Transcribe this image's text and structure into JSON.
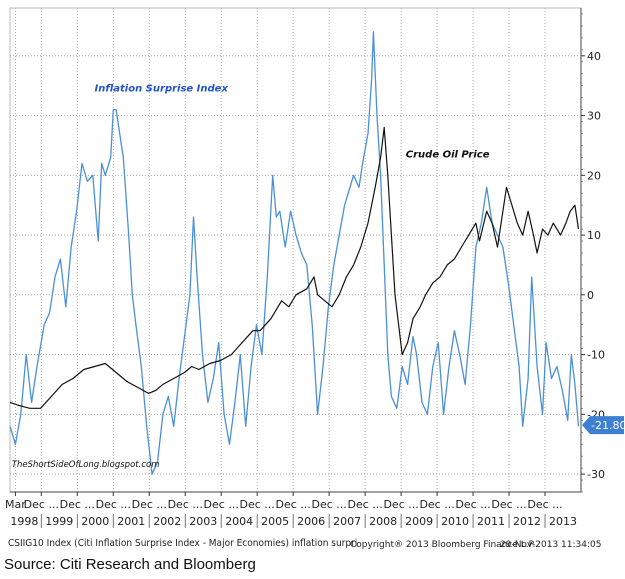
{
  "chart_data": {
    "type": "line",
    "title": "",
    "xlabel": "",
    "ylabel": "",
    "ylim": [
      -33,
      48
    ],
    "yticks": [
      -30,
      -20,
      -10,
      0,
      10,
      20,
      30,
      40
    ],
    "y_tick_labels": [
      "-30",
      "-20",
      "-10",
      "0",
      "10",
      "20",
      "30",
      "40"
    ],
    "last_value_label": "-21.80",
    "last_value": -21.8,
    "x_range": [
      1998.05,
      2013.92
    ],
    "x_ticks": [
      {
        "x": 1998.2,
        "month": "Mar",
        "year": "1998"
      },
      {
        "x": 1998.92,
        "month": "Dec ...",
        "year": "1999"
      },
      {
        "x": 1999.92,
        "month": "Dec ...",
        "year": "2000"
      },
      {
        "x": 2000.92,
        "month": "Dec ...",
        "year": "2001"
      },
      {
        "x": 2001.92,
        "month": "Dec ...",
        "year": "2002"
      },
      {
        "x": 2002.92,
        "month": "Dec ...",
        "year": "2003"
      },
      {
        "x": 2003.92,
        "month": "Dec ...",
        "year": "2004"
      },
      {
        "x": 2004.92,
        "month": "Dec ...",
        "year": "2005"
      },
      {
        "x": 2005.92,
        "month": "Dec ...",
        "year": "2006"
      },
      {
        "x": 2006.92,
        "month": "Dec ...",
        "year": "2007"
      },
      {
        "x": 2007.92,
        "month": "Dec ...",
        "year": "2008"
      },
      {
        "x": 2008.92,
        "month": "Dec ...",
        "year": "2009"
      },
      {
        "x": 2009.92,
        "month": "Dec ...",
        "year": "2010"
      },
      {
        "x": 2010.92,
        "month": "Dec ...",
        "year": "2011"
      },
      {
        "x": 2011.92,
        "month": "Dec ...",
        "year": "2012"
      },
      {
        "x": 2012.92,
        "month": "Dec ...",
        "year": "2013"
      }
    ],
    "series": [
      {
        "name": "Inflation Surprise Index",
        "color": "#4a90d9",
        "points": [
          [
            1998.05,
            -22
          ],
          [
            1998.2,
            -25
          ],
          [
            1998.35,
            -20
          ],
          [
            1998.5,
            -10
          ],
          [
            1998.65,
            -18
          ],
          [
            1998.8,
            -12
          ],
          [
            1999.0,
            -5
          ],
          [
            1999.15,
            -3
          ],
          [
            1999.3,
            3
          ],
          [
            1999.45,
            6
          ],
          [
            1999.6,
            -2
          ],
          [
            1999.75,
            8
          ],
          [
            1999.9,
            14
          ],
          [
            2000.05,
            22
          ],
          [
            2000.2,
            19
          ],
          [
            2000.35,
            20
          ],
          [
            2000.5,
            9
          ],
          [
            2000.6,
            22
          ],
          [
            2000.7,
            20
          ],
          [
            2000.85,
            23
          ],
          [
            2000.92,
            31
          ],
          [
            2001.0,
            31
          ],
          [
            2001.1,
            27
          ],
          [
            2001.2,
            23
          ],
          [
            2001.35,
            10
          ],
          [
            2001.45,
            0
          ],
          [
            2001.55,
            -5
          ],
          [
            2001.7,
            -12
          ],
          [
            2001.85,
            -22
          ],
          [
            2002.0,
            -30
          ],
          [
            2002.15,
            -28
          ],
          [
            2002.3,
            -20
          ],
          [
            2002.45,
            -17
          ],
          [
            2002.6,
            -22
          ],
          [
            2002.75,
            -14
          ],
          [
            2002.9,
            -7
          ],
          [
            2003.05,
            0
          ],
          [
            2003.15,
            13
          ],
          [
            2003.25,
            3
          ],
          [
            2003.4,
            -10
          ],
          [
            2003.55,
            -18
          ],
          [
            2003.7,
            -14
          ],
          [
            2003.85,
            -8
          ],
          [
            2004.0,
            -20
          ],
          [
            2004.15,
            -25
          ],
          [
            2004.3,
            -18
          ],
          [
            2004.45,
            -10
          ],
          [
            2004.6,
            -22
          ],
          [
            2004.75,
            -12
          ],
          [
            2004.9,
            -5
          ],
          [
            2005.05,
            -10
          ],
          [
            2005.2,
            3
          ],
          [
            2005.35,
            20
          ],
          [
            2005.45,
            13
          ],
          [
            2005.55,
            14
          ],
          [
            2005.7,
            8
          ],
          [
            2005.85,
            14
          ],
          [
            2006.0,
            10
          ],
          [
            2006.15,
            7
          ],
          [
            2006.3,
            5
          ],
          [
            2006.45,
            -5
          ],
          [
            2006.6,
            -20
          ],
          [
            2006.75,
            -12
          ],
          [
            2006.9,
            -2
          ],
          [
            2007.05,
            5
          ],
          [
            2007.2,
            10
          ],
          [
            2007.35,
            15
          ],
          [
            2007.5,
            18
          ],
          [
            2007.6,
            20
          ],
          [
            2007.75,
            18
          ],
          [
            2007.85,
            22
          ],
          [
            2008.0,
            27
          ],
          [
            2008.1,
            36
          ],
          [
            2008.15,
            44
          ],
          [
            2008.25,
            30
          ],
          [
            2008.35,
            20
          ],
          [
            2008.45,
            5
          ],
          [
            2008.55,
            -10
          ],
          [
            2008.65,
            -17
          ],
          [
            2008.8,
            -19
          ],
          [
            2008.95,
            -12
          ],
          [
            2009.1,
            -15
          ],
          [
            2009.25,
            -7
          ],
          [
            2009.35,
            -10
          ],
          [
            2009.5,
            -18
          ],
          [
            2009.65,
            -20
          ],
          [
            2009.8,
            -12
          ],
          [
            2009.95,
            -8
          ],
          [
            2010.1,
            -20
          ],
          [
            2010.25,
            -12
          ],
          [
            2010.4,
            -6
          ],
          [
            2010.55,
            -10
          ],
          [
            2010.7,
            -15
          ],
          [
            2010.85,
            -5
          ],
          [
            2011.0,
            8
          ],
          [
            2011.15,
            12
          ],
          [
            2011.3,
            18
          ],
          [
            2011.45,
            12
          ],
          [
            2011.6,
            10
          ],
          [
            2011.75,
            8
          ],
          [
            2011.9,
            2
          ],
          [
            2012.05,
            -5
          ],
          [
            2012.2,
            -12
          ],
          [
            2012.3,
            -22
          ],
          [
            2012.45,
            -14
          ],
          [
            2012.55,
            3
          ],
          [
            2012.7,
            -12
          ],
          [
            2012.85,
            -20
          ],
          [
            2012.95,
            -8
          ],
          [
            2013.1,
            -14
          ],
          [
            2013.25,
            -12
          ],
          [
            2013.4,
            -16
          ],
          [
            2013.55,
            -21
          ],
          [
            2013.65,
            -10
          ],
          [
            2013.75,
            -15
          ],
          [
            2013.85,
            -22
          ]
        ]
      },
      {
        "name": "Crude Oil Price",
        "color": "#111111",
        "points": [
          [
            1998.05,
            -18
          ],
          [
            1998.3,
            -18.5
          ],
          [
            1998.6,
            -19
          ],
          [
            1998.9,
            -19
          ],
          [
            1999.2,
            -17
          ],
          [
            1999.5,
            -15
          ],
          [
            1999.8,
            -14
          ],
          [
            2000.1,
            -12.5
          ],
          [
            2000.4,
            -12
          ],
          [
            2000.7,
            -11.5
          ],
          [
            2001.0,
            -13
          ],
          [
            2001.3,
            -14.5
          ],
          [
            2001.6,
            -15.5
          ],
          [
            2001.9,
            -16.5
          ],
          [
            2002.1,
            -16
          ],
          [
            2002.3,
            -15
          ],
          [
            2002.6,
            -14
          ],
          [
            2002.9,
            -13
          ],
          [
            2003.1,
            -12
          ],
          [
            2003.3,
            -12.5
          ],
          [
            2003.6,
            -11.5
          ],
          [
            2003.9,
            -11
          ],
          [
            2004.2,
            -10
          ],
          [
            2004.5,
            -8
          ],
          [
            2004.8,
            -6
          ],
          [
            2005.0,
            -6
          ],
          [
            2005.3,
            -4
          ],
          [
            2005.6,
            -1
          ],
          [
            2005.8,
            -2
          ],
          [
            2006.0,
            0
          ],
          [
            2006.3,
            1
          ],
          [
            2006.5,
            3
          ],
          [
            2006.6,
            0
          ],
          [
            2006.8,
            -1
          ],
          [
            2007.0,
            -2
          ],
          [
            2007.2,
            0
          ],
          [
            2007.4,
            3
          ],
          [
            2007.6,
            5
          ],
          [
            2007.8,
            8
          ],
          [
            2008.0,
            12
          ],
          [
            2008.2,
            18
          ],
          [
            2008.35,
            23
          ],
          [
            2008.45,
            28
          ],
          [
            2008.55,
            20
          ],
          [
            2008.65,
            10
          ],
          [
            2008.75,
            0
          ],
          [
            2008.85,
            -5
          ],
          [
            2008.95,
            -10
          ],
          [
            2009.1,
            -8
          ],
          [
            2009.25,
            -4
          ],
          [
            2009.45,
            -2
          ],
          [
            2009.6,
            0
          ],
          [
            2009.8,
            2
          ],
          [
            2010.0,
            3
          ],
          [
            2010.2,
            5
          ],
          [
            2010.4,
            6
          ],
          [
            2010.6,
            8
          ],
          [
            2010.8,
            10
          ],
          [
            2011.0,
            12
          ],
          [
            2011.1,
            9
          ],
          [
            2011.3,
            14
          ],
          [
            2011.45,
            12
          ],
          [
            2011.6,
            8
          ],
          [
            2011.75,
            14
          ],
          [
            2011.85,
            18
          ],
          [
            2012.0,
            15
          ],
          [
            2012.15,
            12
          ],
          [
            2012.3,
            10
          ],
          [
            2012.45,
            14
          ],
          [
            2012.6,
            10
          ],
          [
            2012.7,
            7
          ],
          [
            2012.85,
            11
          ],
          [
            2013.0,
            10
          ],
          [
            2013.15,
            12
          ],
          [
            2013.35,
            10
          ],
          [
            2013.5,
            12
          ],
          [
            2013.62,
            14
          ],
          [
            2013.75,
            15
          ],
          [
            2013.85,
            11
          ]
        ]
      }
    ],
    "annotations": [
      {
        "text": "Inflation Surprise Index",
        "x": 2000.4,
        "y": 34,
        "color": "#2255cc"
      },
      {
        "text": "Crude Oil Price",
        "x": 2009.05,
        "y": 23,
        "color": "#111111"
      },
      {
        "text": "TheShortSideOfLong.blogspot.com",
        "x": 1998.1,
        "y": -28.8,
        "color": "#111111"
      }
    ]
  },
  "footer": {
    "index_description": "CSIIG10 Index (Citi Inflation Surprise Index - Major Economies) inflation surpri",
    "copyright": "Copyright® 2013 Bloomberg Finance L.P.",
    "timestamp": "29-Nov-2013 11:34:05"
  },
  "source": "Source: Citi Research and Bloomberg"
}
